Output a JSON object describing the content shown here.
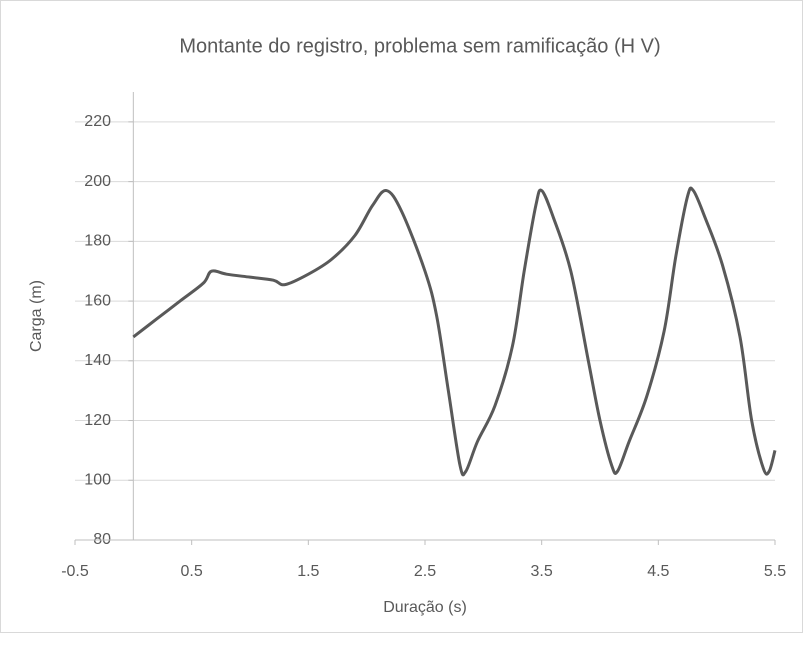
{
  "chart_data": {
    "type": "line",
    "title": "Montante do registro, problema sem ramificação (H V)",
    "x_label": "Duração (s)",
    "y_label": "Carga (m)",
    "x": [
      0,
      0.2,
      0.4,
      0.6,
      0.67,
      0.8,
      1.0,
      1.2,
      1.3,
      1.5,
      1.7,
      1.9,
      2.05,
      2.17,
      2.3,
      2.5,
      2.6,
      2.7,
      2.8,
      2.85,
      2.95,
      3.1,
      3.25,
      3.35,
      3.45,
      3.5,
      3.6,
      3.75,
      3.9,
      4.0,
      4.1,
      4.15,
      4.25,
      4.4,
      4.55,
      4.65,
      4.75,
      4.8,
      4.9,
      5.05,
      5.2,
      5.3,
      5.4,
      5.45,
      5.5
    ],
    "series": [
      {
        "name": "H",
        "color": "#595959",
        "values": [
          148,
          154,
          160,
          166,
          170,
          169,
          168,
          167,
          165.5,
          169,
          174,
          182,
          192,
          197,
          190,
          170,
          155,
          130,
          105,
          103,
          113,
          125,
          145,
          170,
          192,
          197,
          188,
          170,
          140,
          120,
          105,
          103,
          113,
          128,
          150,
          175,
          195,
          197,
          188,
          172,
          148,
          120,
          104,
          103,
          110
        ]
      }
    ],
    "xlim": [
      -0.5,
      5.5
    ],
    "xticks": [
      -0.5,
      0.5,
      1.5,
      2.5,
      3.5,
      4.5,
      5.5
    ],
    "ylim": [
      80,
      230
    ],
    "yticks": [
      80,
      100,
      120,
      140,
      160,
      180,
      200,
      220
    ],
    "grid": true
  }
}
